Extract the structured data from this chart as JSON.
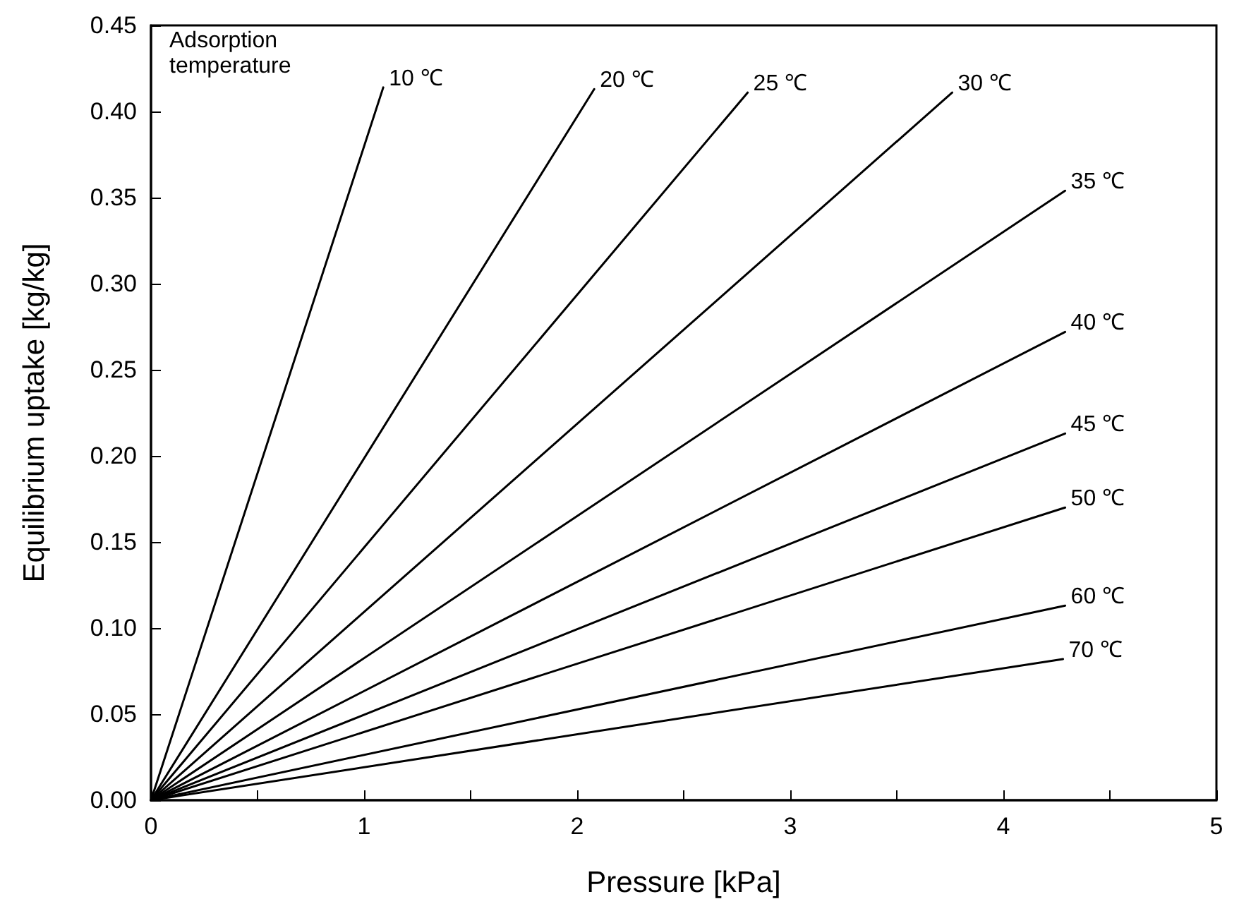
{
  "chart_data": {
    "type": "line",
    "xlabel": "Pressure [kPa]",
    "ylabel": "Equilibrium uptake [kg/kg]",
    "annotations": [
      "Adsorption\ntemperature"
    ],
    "xlim": [
      0,
      5
    ],
    "xticks": [
      0,
      {
        "value": 0.5,
        "label": null
      },
      1,
      {
        "value": 1.5,
        "label": null
      },
      2,
      {
        "value": 2.5,
        "label": null
      },
      3,
      {
        "value": 3.5,
        "label": null
      },
      4,
      {
        "value": 4.5,
        "label": null
      },
      5
    ],
    "ylim": [
      0,
      0.45
    ],
    "yticks": [
      {
        "value": 0,
        "label": "0.00"
      },
      0.05,
      {
        "value": 0.1,
        "label": "0.10"
      },
      0.15,
      {
        "value": 0.2,
        "label": "0.20"
      },
      0.25,
      {
        "value": 0.3,
        "label": "0.30"
      },
      0.35,
      {
        "value": 0.4,
        "label": "0.40"
      },
      0.45
    ],
    "grid": false,
    "legend": false,
    "marker": "none",
    "line_style": "solid",
    "series": [
      {
        "name": "10 ℃",
        "color": "#000000",
        "x": [
          0,
          1.09
        ],
        "values": [
          0,
          0.414
        ]
      },
      {
        "name": "20 ℃",
        "color": "#000000",
        "x": [
          0,
          2.08
        ],
        "values": [
          0,
          0.413
        ]
      },
      {
        "name": "25 ℃",
        "color": "#000000",
        "x": [
          0,
          2.8
        ],
        "values": [
          0,
          0.411
        ]
      },
      {
        "name": "30 ℃",
        "color": "#000000",
        "x": [
          0,
          3.76
        ],
        "values": [
          0,
          0.411
        ]
      },
      {
        "name": "35 ℃",
        "color": "#000000",
        "x": [
          0,
          4.29
        ],
        "values": [
          0,
          0.354
        ]
      },
      {
        "name": "40 ℃",
        "color": "#000000",
        "x": [
          0,
          4.29
        ],
        "values": [
          0,
          0.272
        ]
      },
      {
        "name": "45 ℃",
        "color": "#000000",
        "x": [
          0,
          4.29
        ],
        "values": [
          0,
          0.213
        ]
      },
      {
        "name": "50 ℃",
        "color": "#000000",
        "x": [
          0,
          4.29
        ],
        "values": [
          0,
          0.17
        ]
      },
      {
        "name": "60 ℃",
        "color": "#000000",
        "x": [
          0,
          4.29
        ],
        "values": [
          0,
          0.113
        ]
      },
      {
        "name": "70 ℃",
        "color": "#000000",
        "x": [
          0,
          4.28
        ],
        "values": [
          0,
          0.082
        ]
      }
    ]
  }
}
